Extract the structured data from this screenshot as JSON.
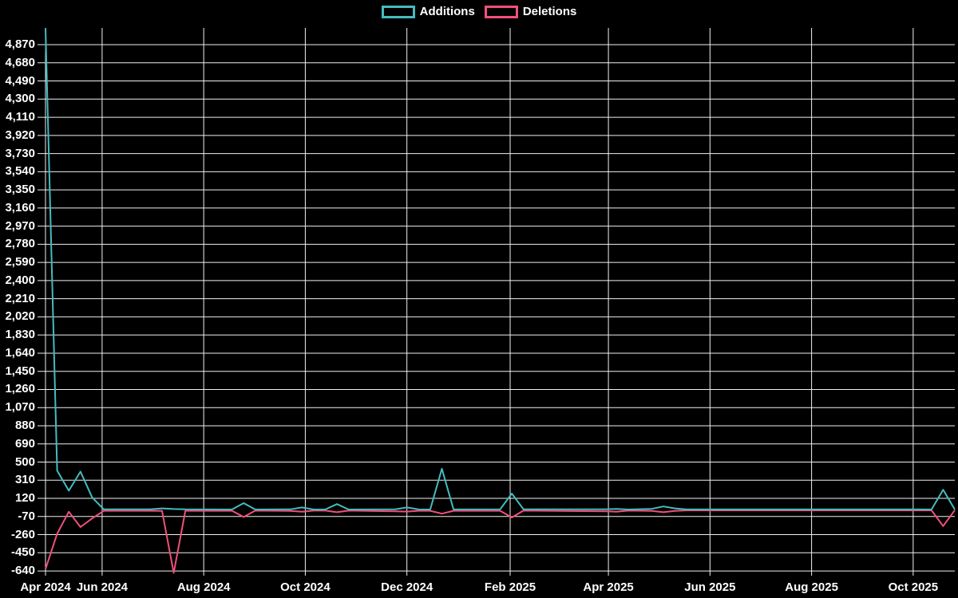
{
  "legend": {
    "items": [
      {
        "label": "Additions",
        "color": "#44bcc0"
      },
      {
        "label": "Deletions",
        "color": "#f2507a"
      }
    ]
  },
  "chart_data": {
    "type": "line",
    "title": "",
    "xlabel": "",
    "ylabel": "",
    "background_color": "#000000",
    "grid": true,
    "grid_color": "#f0f0f0",
    "text_color": "#ffffff",
    "legend_position": "top-center",
    "x_axis": {
      "start": "2024-04-28",
      "end": "2025-10-26",
      "ticks": [
        {
          "label": "Apr 2024",
          "date": "2024-04-28"
        },
        {
          "label": "Jun 2024",
          "date": "2024-06-01"
        },
        {
          "label": "Aug 2024",
          "date": "2024-08-01"
        },
        {
          "label": "Oct 2024",
          "date": "2024-10-01"
        },
        {
          "label": "Dec 2024",
          "date": "2024-12-01"
        },
        {
          "label": "Feb 2025",
          "date": "2025-02-01"
        },
        {
          "label": "Apr 2025",
          "date": "2025-04-01"
        },
        {
          "label": "Jun 2025",
          "date": "2025-06-01"
        },
        {
          "label": "Aug 2025",
          "date": "2025-08-01"
        },
        {
          "label": "Oct 2025",
          "date": "2025-10-01"
        }
      ]
    },
    "y_axis": {
      "min": -640,
      "max": 4870,
      "step": 190,
      "tick_values": [
        4870,
        4680,
        4490,
        4300,
        4110,
        3920,
        3730,
        3540,
        3350,
        3160,
        2970,
        2780,
        2590,
        2400,
        2210,
        2020,
        1830,
        1640,
        1450,
        1260,
        1070,
        880,
        690,
        500,
        310,
        120,
        -70,
        -260,
        -450,
        -640
      ],
      "tick_labels": [
        "4,870",
        "4,680",
        "4,490",
        "4,300",
        "4,110",
        "3,920",
        "3,730",
        "3,540",
        "3,350",
        "3,160",
        "2,970",
        "2,780",
        "2,590",
        "2,400",
        "2,210",
        "2,020",
        "1,830",
        "1,640",
        "1,450",
        "1,260",
        "1,070",
        "880",
        "690",
        "500",
        "310",
        "120",
        "-70",
        "-260",
        "-450",
        "-640"
      ]
    },
    "dates": [
      "2024-04-28",
      "2024-05-05",
      "2024-05-12",
      "2024-05-19",
      "2024-05-26",
      "2024-06-02",
      "2024-06-30",
      "2024-07-07",
      "2024-07-14",
      "2024-07-21",
      "2024-08-18",
      "2024-08-25",
      "2024-09-01",
      "2024-09-22",
      "2024-09-29",
      "2024-10-06",
      "2024-10-13",
      "2024-10-20",
      "2024-10-27",
      "2024-11-24",
      "2024-12-01",
      "2024-12-08",
      "2024-12-15",
      "2024-12-22",
      "2024-12-29",
      "2025-01-26",
      "2025-02-02",
      "2025-02-09",
      "2025-03-30",
      "2025-04-06",
      "2025-04-13",
      "2025-04-27",
      "2025-05-04",
      "2025-05-11",
      "2025-05-18",
      "2025-10-05",
      "2025-10-12",
      "2025-10-19",
      "2025-10-26"
    ],
    "series": [
      {
        "name": "Additions",
        "color": "#44bcc0",
        "values": [
          5040,
          410,
          200,
          400,
          130,
          5,
          5,
          15,
          8,
          5,
          3,
          70,
          3,
          5,
          25,
          3,
          4,
          60,
          3,
          6,
          25,
          4,
          3,
          430,
          4,
          5,
          170,
          6,
          5,
          10,
          3,
          10,
          35,
          15,
          4,
          4,
          3,
          210,
          3
        ]
      },
      {
        "name": "Deletions",
        "color": "#f2507a",
        "values": [
          -620,
          -250,
          -20,
          -180,
          -90,
          -10,
          -10,
          -12,
          -660,
          -10,
          -10,
          -75,
          -8,
          -12,
          -20,
          -8,
          -8,
          -25,
          -8,
          -15,
          -18,
          -10,
          -10,
          -40,
          -10,
          -10,
          -80,
          -8,
          -15,
          -20,
          -8,
          -12,
          -25,
          -12,
          -6,
          -6,
          -5,
          -170,
          -3
        ]
      }
    ]
  }
}
